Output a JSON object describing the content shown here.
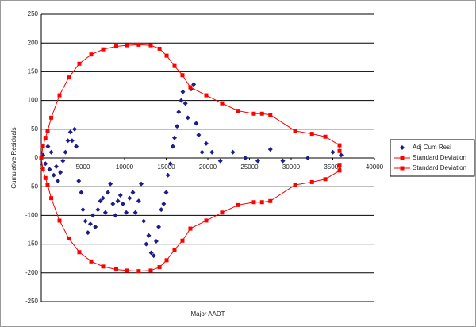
{
  "chart_data": {
    "type": "scatter",
    "x_label": "Major AADT",
    "y_label": "Cumulative Residuals",
    "xlim": [
      0,
      40000
    ],
    "xticks": [
      0,
      5000,
      10000,
      15000,
      20000,
      25000,
      30000,
      35000,
      40000
    ],
    "ylim": [
      -250,
      250
    ],
    "yticks": [
      -250,
      -200,
      -150,
      -100,
      -50,
      0,
      50,
      100,
      150,
      200,
      250
    ],
    "grid": true,
    "legend": "right",
    "series": [
      {
        "name": "Adj Cum Resi",
        "color": "#1c1c8a",
        "marker": "diamond",
        "line": false,
        "x": [
          200,
          500,
          800,
          1000,
          1200,
          1500,
          1800,
          2000,
          2300,
          2600,
          2900,
          3200,
          3500,
          3700,
          4000,
          4200,
          4500,
          4800,
          5000,
          5300,
          5600,
          5900,
          6200,
          6500,
          6800,
          7100,
          7400,
          7700,
          8000,
          8300,
          8600,
          8900,
          9200,
          9500,
          9800,
          10200,
          10600,
          11000,
          11300,
          11700,
          12000,
          12300,
          12600,
          12900,
          13200,
          13500,
          13800,
          14100,
          14400,
          14700,
          15000,
          15200,
          15500,
          15800,
          16000,
          16300,
          16500,
          16800,
          17000,
          17300,
          17600,
          18000,
          18300,
          18600,
          18900,
          19300,
          19800,
          20500,
          21500,
          23000,
          24500,
          26000,
          27500,
          29000,
          32000,
          35000,
          36000
        ],
        "values": [
          5,
          -10,
          20,
          -20,
          10,
          -30,
          -15,
          -40,
          -25,
          -5,
          10,
          30,
          45,
          30,
          50,
          20,
          -40,
          -60,
          -90,
          -110,
          -130,
          -115,
          -100,
          -120,
          -90,
          -75,
          -70,
          -95,
          -60,
          -45,
          -80,
          -100,
          -75,
          -65,
          -80,
          -95,
          -70,
          -60,
          -95,
          -75,
          -45,
          -110,
          -150,
          -135,
          -165,
          -170,
          -145,
          -120,
          -90,
          -80,
          -60,
          -30,
          -10,
          20,
          35,
          55,
          80,
          100,
          115,
          95,
          70,
          120,
          128,
          60,
          40,
          10,
          25,
          10,
          -5,
          10,
          0,
          -5,
          15,
          -5,
          0,
          10,
          5
        ]
      },
      {
        "name": "Standard Deviation",
        "color": "#ff0000",
        "marker": "square",
        "line": true,
        "x": [
          0,
          200,
          500,
          760,
          1200,
          2190,
          3300,
          4570,
          6000,
          7430,
          9000,
          10290,
          11700,
          13140,
          14200,
          15050,
          16000,
          16950,
          17900,
          19810,
          21710,
          23620,
          25520,
          26500,
          27500,
          30480,
          32500,
          34100,
          35810,
          35810
        ],
        "values": [
          0,
          20,
          35,
          47,
          70,
          109,
          140,
          164,
          180,
          189,
          194,
          196,
          197,
          196,
          190,
          178,
          160,
          144,
          123,
          109,
          95,
          82,
          77,
          77,
          75,
          47,
          42,
          37,
          22,
          12
        ]
      },
      {
        "name": "Standard Deviation",
        "color": "#ff0000",
        "marker": "square",
        "line": true,
        "x": [
          0,
          200,
          500,
          760,
          1200,
          2190,
          3300,
          4570,
          6000,
          7430,
          9000,
          10290,
          11700,
          13140,
          14200,
          15050,
          16000,
          16950,
          17900,
          19810,
          21710,
          23620,
          25520,
          26500,
          27500,
          30480,
          32500,
          34100,
          35810,
          35810
        ],
        "values": [
          0,
          -20,
          -35,
          -47,
          -70,
          -109,
          -140,
          -164,
          -180,
          -189,
          -194,
          -196,
          -197,
          -196,
          -190,
          -178,
          -160,
          -144,
          -123,
          -109,
          -95,
          -82,
          -77,
          -77,
          -75,
          -47,
          -42,
          -37,
          -22,
          -12
        ]
      }
    ]
  }
}
